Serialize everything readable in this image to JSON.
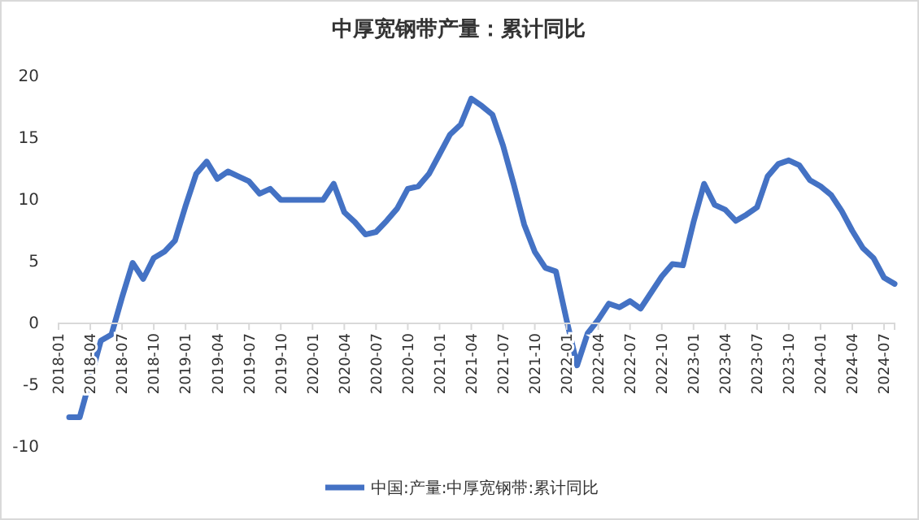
{
  "chart_data": {
    "type": "line",
    "title": "中厚宽钢带产量：累计同比",
    "categories": [
      "2018-01",
      null,
      null,
      "2018-04",
      null,
      null,
      "2018-07",
      null,
      null,
      "2018-10",
      null,
      null,
      "2019-01",
      null,
      null,
      "2019-04",
      null,
      null,
      "2019-07",
      null,
      null,
      "2019-10",
      null,
      null,
      "2020-01",
      null,
      null,
      "2020-04",
      null,
      null,
      "2020-07",
      null,
      null,
      "2020-10",
      null,
      null,
      "2021-01",
      null,
      null,
      "2021-04",
      null,
      null,
      "2021-07",
      null,
      null,
      "2021-10",
      null,
      null,
      "2022-01",
      null,
      null,
      "2022-04",
      null,
      null,
      "2022-07",
      null,
      null,
      "2022-10",
      null,
      null,
      "2023-01",
      null,
      null,
      "2023-04",
      null,
      null,
      "2023-07",
      null,
      null,
      "2023-10",
      null,
      null,
      "2024-01",
      null,
      null,
      "2024-04",
      null,
      null,
      "2024-07",
      null
    ],
    "series": [
      {
        "name": "中国:产量:中厚宽钢带:累计同比",
        "color": "#4472c4",
        "values": [
          null,
          -7.6,
          -7.6,
          -4.5,
          -1.4,
          -0.9,
          2.1,
          4.9,
          3.6,
          5.3,
          5.8,
          6.7,
          9.5,
          12.1,
          13.1,
          11.7,
          12.3,
          11.9,
          11.5,
          10.5,
          10.9,
          10.0,
          10.0,
          10.0,
          10.0,
          10.0,
          11.3,
          9.0,
          8.2,
          7.2,
          7.4,
          8.3,
          9.3,
          10.9,
          11.1,
          12.1,
          13.7,
          15.3,
          16.1,
          18.2,
          17.6,
          16.9,
          14.4,
          11.3,
          8.0,
          5.8,
          4.5,
          4.2,
          0.3,
          -3.4,
          -0.8,
          0.3,
          1.6,
          1.3,
          1.8,
          1.2,
          2.5,
          3.8,
          4.8,
          4.7,
          8.2,
          11.3,
          9.6,
          9.2,
          8.3,
          8.8,
          9.4,
          11.9,
          12.9,
          13.2,
          12.8,
          11.6,
          11.1,
          10.4,
          9.1,
          7.5,
          6.1,
          5.3,
          3.7,
          3.2
        ]
      }
    ],
    "ylim": [
      -10,
      20
    ],
    "yticks": [
      -10,
      -5,
      0,
      5,
      10,
      15,
      20
    ],
    "grid": false,
    "legend": "bottom",
    "line_style": "solid",
    "marker": "none"
  }
}
